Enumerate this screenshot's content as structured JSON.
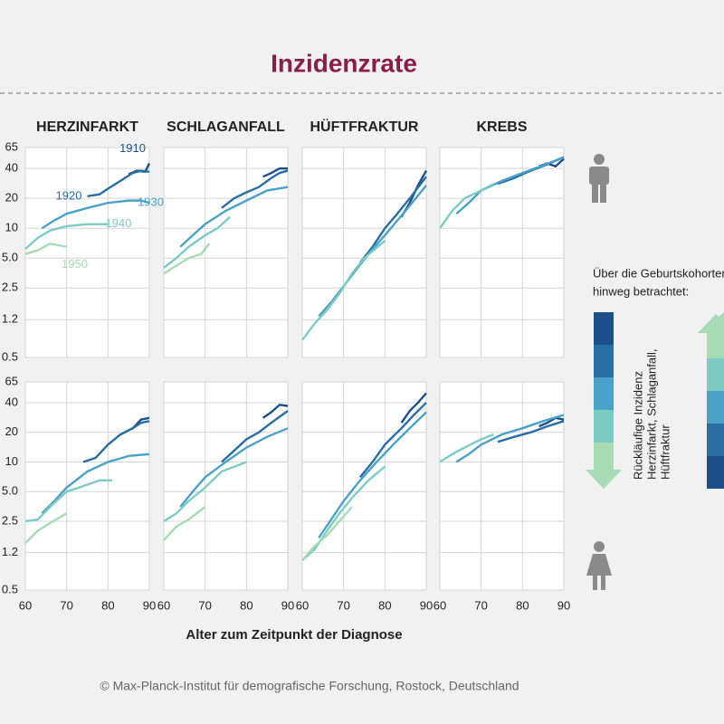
{
  "title": "Inzidenzrate",
  "x_label": "Alter zum Zeitpunkt der Diagnose",
  "credit": "© Max-Planck-Institut für demografische Forschung, Rostock, Deutschland",
  "legend": {
    "heading": [
      "Über die Geburtskohorten",
      "hinweg betrachtet:"
    ],
    "note": [
      "Rückläufige Inzidenz",
      "Herzinfarkt, Schlaganfall,",
      "Hüftfraktur"
    ]
  },
  "chart_data": [
    {
      "type": "line",
      "title": "HERZINFARKT",
      "xlim": [
        60,
        90
      ],
      "xticks": [
        60,
        70,
        80,
        90
      ],
      "ylim": [
        0.5,
        65
      ],
      "yscale": "log",
      "grid": true,
      "yticks": [
        0.5,
        1.2,
        2.5,
        {
          "value": 5,
          "label": "5.0"
        },
        10,
        20,
        40,
        65
      ],
      "series": [
        {
          "name": "1910",
          "color": "#1d4f8a",
          "x": [
            85,
            87,
            89,
            90
          ],
          "values": [
            35,
            38,
            37,
            45
          ]
        },
        {
          "name": "1920",
          "color": "#2a6ea6",
          "x": [
            75,
            78,
            80,
            83,
            86,
            88,
            90
          ],
          "values": [
            21,
            22,
            25,
            30,
            36,
            38,
            37
          ]
        },
        {
          "name": "1930",
          "color": "#4aa2c8",
          "x": [
            64,
            67,
            70,
            75,
            80,
            85,
            88,
            90
          ],
          "values": [
            10,
            12,
            14,
            16,
            18,
            19,
            19,
            18
          ]
        },
        {
          "name": "1940",
          "color": "#7cccc4",
          "x": [
            60,
            63,
            66,
            70,
            75,
            80
          ],
          "values": [
            6.2,
            8,
            9.5,
            10.5,
            11,
            11
          ]
        },
        {
          "name": "1950",
          "color": "#a6dbb3",
          "x": [
            60,
            63,
            66,
            70
          ],
          "values": [
            5.5,
            6,
            7,
            6.5
          ]
        }
      ]
    },
    {
      "type": "line",
      "title": "SCHLAGANFALL",
      "xlim": [
        60,
        90
      ],
      "xticks": [
        60,
        70,
        80,
        90
      ],
      "ylim": [
        0.5,
        65
      ],
      "yscale": "log",
      "grid": true,
      "yticks": [
        0.5,
        1.2,
        2.5,
        {
          "value": 5,
          "label": "5.0"
        },
        10,
        20,
        40,
        65
      ],
      "series": [
        {
          "color": "#1d4f8a",
          "x": [
            84,
            86,
            88,
            90
          ],
          "values": [
            33,
            36,
            40,
            40
          ]
        },
        {
          "color": "#2a6ea6",
          "x": [
            74,
            77,
            80,
            83,
            86,
            88,
            90
          ],
          "values": [
            16,
            20,
            23,
            26,
            32,
            36,
            38
          ]
        },
        {
          "color": "#4aa2c8",
          "x": [
            64,
            67,
            70,
            75,
            80,
            85,
            90
          ],
          "values": [
            6.5,
            8.5,
            11,
            15,
            19,
            24,
            26
          ]
        },
        {
          "color": "#7cccc4",
          "x": [
            60,
            63,
            66,
            70,
            73,
            76
          ],
          "values": [
            4,
            5,
            6.5,
            8.5,
            10,
            13
          ]
        },
        {
          "color": "#a6dbb3",
          "x": [
            60,
            63,
            66,
            69,
            71
          ],
          "values": [
            3.5,
            4.2,
            5,
            5.5,
            7
          ]
        }
      ]
    },
    {
      "type": "line",
      "title": "HÜFTFRAKTUR",
      "xlim": [
        60,
        90
      ],
      "xticks": [
        60,
        70,
        80,
        90
      ],
      "ylim": [
        0.5,
        65
      ],
      "yscale": "log",
      "grid": true,
      "yticks": [
        0.5,
        1.2,
        2.5,
        {
          "value": 5,
          "label": "5.0"
        },
        10,
        20,
        40,
        65
      ],
      "series": [
        {
          "color": "#1d4f8a",
          "x": [
            84,
            86,
            88,
            90
          ],
          "values": [
            13,
            18,
            27,
            38
          ]
        },
        {
          "color": "#2a6ea6",
          "x": [
            74,
            77,
            80,
            83,
            86,
            90
          ],
          "values": [
            4.5,
            6.5,
            10,
            14,
            20,
            33
          ]
        },
        {
          "color": "#4aa2c8",
          "x": [
            64,
            67,
            70,
            73,
            76,
            80,
            85,
            90
          ],
          "values": [
            1.3,
            1.8,
            2.6,
            3.8,
            5.5,
            8.5,
            15,
            27
          ]
        },
        {
          "color": "#7cccc4",
          "x": [
            60,
            63,
            66,
            69,
            72,
            75,
            80
          ],
          "values": [
            0.75,
            1.1,
            1.5,
            2.2,
            3.5,
            5,
            7.5
          ]
        }
      ]
    },
    {
      "type": "line",
      "title": "KREBS",
      "xlim": [
        60,
        90
      ],
      "xticks": [
        60,
        70,
        80,
        90
      ],
      "ylim": [
        0.5,
        65
      ],
      "yscale": "log",
      "grid": true,
      "yticks": [
        0.5,
        1.2,
        2.5,
        {
          "value": 5,
          "label": "5.0"
        },
        10,
        20,
        40,
        65
      ],
      "series": [
        {
          "color": "#1d4f8a",
          "x": [
            84,
            86,
            88,
            90
          ],
          "values": [
            42,
            45,
            42,
            50
          ]
        },
        {
          "color": "#2a6ea6",
          "x": [
            74,
            78,
            82,
            86,
            90
          ],
          "values": [
            28,
            32,
            38,
            44,
            52
          ]
        },
        {
          "color": "#4aa2c8",
          "x": [
            64,
            67,
            70,
            75,
            80,
            85,
            90
          ],
          "values": [
            14,
            18,
            24,
            30,
            36,
            43,
            52
          ]
        },
        {
          "color": "#7cccc4",
          "x": [
            60,
            63,
            66,
            70,
            73
          ],
          "values": [
            10,
            15,
            20,
            24,
            28
          ]
        }
      ]
    },
    {
      "type": "line",
      "xlim": [
        60,
        90
      ],
      "xticks": [
        60,
        70,
        80,
        90
      ],
      "ylim": [
        0.5,
        65
      ],
      "yscale": "log",
      "grid": true,
      "yticks": [
        0.5,
        1.2,
        2.5,
        {
          "value": 5,
          "label": "5.0"
        },
        10,
        20,
        40,
        65
      ],
      "series": [
        {
          "color": "#1d4f8a",
          "x": [
            84,
            86,
            88,
            90
          ],
          "values": [
            20,
            22,
            27,
            28
          ]
        },
        {
          "color": "#2a6ea6",
          "x": [
            74,
            77,
            80,
            83,
            86,
            88,
            90
          ],
          "values": [
            10,
            11,
            15,
            19,
            22,
            25,
            26
          ]
        },
        {
          "color": "#4aa2c8",
          "x": [
            64,
            67,
            70,
            75,
            80,
            85,
            90
          ],
          "values": [
            3,
            4,
            5.5,
            8,
            10,
            11.5,
            12
          ]
        },
        {
          "color": "#7cccc4",
          "x": [
            60,
            63,
            66,
            70,
            73,
            78,
            81
          ],
          "values": [
            2.5,
            2.6,
            3.5,
            5,
            5.5,
            6.5,
            6.5
          ]
        },
        {
          "color": "#a6dbb3",
          "x": [
            60,
            63,
            66,
            70
          ],
          "values": [
            1.5,
            2,
            2.4,
            3
          ]
        }
      ]
    },
    {
      "type": "line",
      "xlim": [
        60,
        90
      ],
      "xticks": [
        60,
        70,
        80,
        90
      ],
      "ylim": [
        0.5,
        65
      ],
      "yscale": "log",
      "grid": true,
      "yticks": [
        0.5,
        1.2,
        2.5,
        {
          "value": 5,
          "label": "5.0"
        },
        10,
        20,
        40,
        65
      ],
      "series": [
        {
          "color": "#1d4f8a",
          "x": [
            84,
            86,
            88,
            90
          ],
          "values": [
            28,
            32,
            38,
            37
          ]
        },
        {
          "color": "#2a6ea6",
          "x": [
            74,
            77,
            80,
            83,
            86,
            90
          ],
          "values": [
            10,
            13,
            17,
            20,
            25,
            33
          ]
        },
        {
          "color": "#4aa2c8",
          "x": [
            64,
            67,
            70,
            75,
            80,
            85,
            90
          ],
          "values": [
            3.5,
            5,
            7,
            10,
            14,
            18,
            22
          ]
        },
        {
          "color": "#7cccc4",
          "x": [
            60,
            63,
            66,
            70,
            74,
            80
          ],
          "values": [
            2.5,
            3,
            4,
            5.5,
            8,
            10
          ]
        },
        {
          "color": "#a6dbb3",
          "x": [
            60,
            63,
            66,
            70
          ],
          "values": [
            1.6,
            2.2,
            2.6,
            3.5
          ]
        }
      ]
    },
    {
      "type": "line",
      "xlim": [
        60,
        90
      ],
      "xticks": [
        60,
        70,
        80,
        90
      ],
      "ylim": [
        0.5,
        65
      ],
      "yscale": "log",
      "grid": true,
      "yticks": [
        0.5,
        1.2,
        2.5,
        {
          "value": 5,
          "label": "5.0"
        },
        10,
        20,
        40,
        65
      ],
      "series": [
        {
          "color": "#1d4f8a",
          "x": [
            84,
            86,
            88,
            90
          ],
          "values": [
            25,
            33,
            40,
            50
          ]
        },
        {
          "color": "#2a6ea6",
          "x": [
            74,
            77,
            80,
            84,
            87,
            90
          ],
          "values": [
            7,
            10,
            15,
            22,
            30,
            40
          ]
        },
        {
          "color": "#4aa2c8",
          "x": [
            64,
            67,
            70,
            74,
            78,
            82,
            86,
            90
          ],
          "values": [
            1.7,
            2.6,
            4,
            6.5,
            10,
            15,
            22,
            32
          ]
        },
        {
          "color": "#7cccc4",
          "x": [
            60,
            63,
            66,
            69,
            72,
            76,
            80
          ],
          "values": [
            1.0,
            1.3,
            2.0,
            3.0,
            4.3,
            6.5,
            9
          ]
        },
        {
          "color": "#a6dbb3",
          "x": [
            60,
            63,
            66,
            70,
            72
          ],
          "values": [
            1.0,
            1.4,
            1.8,
            2.8,
            3.5
          ]
        }
      ]
    },
    {
      "type": "line",
      "xlim": [
        60,
        90
      ],
      "xticks": [
        60,
        70,
        80,
        90
      ],
      "ylim": [
        0.5,
        65
      ],
      "yscale": "log",
      "grid": true,
      "yticks": [
        0.5,
        1.2,
        2.5,
        {
          "value": 5,
          "label": "5.0"
        },
        10,
        20,
        40,
        65
      ],
      "series": [
        {
          "color": "#1d4f8a",
          "x": [
            84,
            86,
            88,
            90
          ],
          "values": [
            23,
            25,
            28,
            27
          ]
        },
        {
          "color": "#2a6ea6",
          "x": [
            74,
            78,
            82,
            86,
            90
          ],
          "values": [
            16,
            18,
            20,
            23,
            26
          ]
        },
        {
          "color": "#4aa2c8",
          "x": [
            64,
            67,
            70,
            75,
            80,
            85,
            90
          ],
          "values": [
            10,
            12,
            15,
            19,
            22,
            26,
            30
          ]
        },
        {
          "color": "#7cccc4",
          "x": [
            60,
            63,
            66,
            70,
            73
          ],
          "values": [
            10,
            12,
            14,
            17,
            19
          ]
        }
      ]
    }
  ]
}
